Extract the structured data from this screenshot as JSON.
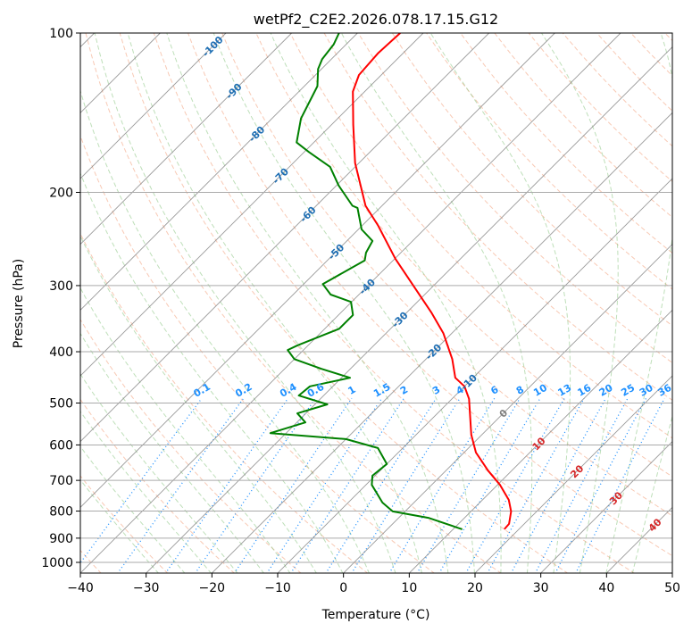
{
  "chart_data": {
    "type": "line",
    "subtype": "skew-t log-p",
    "title": "wetPf2_C2E2.2026.078.17.15.G12",
    "xlabel": "Temperature (°C)",
    "ylabel": "Pressure (hPa)",
    "xlim": [
      -40,
      50
    ],
    "ylim": [
      1050,
      100
    ],
    "xticks": [
      "−40",
      "−30",
      "−20",
      "−10",
      "0",
      "10",
      "20",
      "30",
      "40",
      "50"
    ],
    "xtick_values": [
      -40,
      -30,
      -20,
      -10,
      0,
      10,
      20,
      30,
      40,
      50
    ],
    "yticks": [
      "100",
      "200",
      "300",
      "400",
      "500",
      "600",
      "700",
      "800",
      "900",
      "1000"
    ],
    "ytick_values": [
      100,
      200,
      300,
      400,
      500,
      600,
      700,
      800,
      900,
      1000
    ],
    "grid": true,
    "series": [
      {
        "name": "temperature",
        "color": "#ff0000",
        "p": [
          100,
          109,
          120,
          129,
          149,
          176,
          212,
          231,
          267,
          300,
          337,
          369,
          413,
          448,
          465,
          491,
          574,
          620,
          671,
          714,
          762,
          801,
          846,
          866
        ],
        "T": [
          -73.5,
          -73.8,
          -73.4,
          -71.8,
          -66.7,
          -60.6,
          -52.5,
          -47.6,
          -39.9,
          -33.1,
          -26.3,
          -21.3,
          -16.0,
          -12.7,
          -10.0,
          -7.4,
          -1.6,
          1.8,
          6.4,
          10.4,
          14.0,
          16.1,
          17.7,
          17.8
        ]
      },
      {
        "name": "dewpoint",
        "color": "#008000",
        "p": [
          100,
          105,
          112,
          117,
          126,
          145,
          161,
          168,
          179,
          194,
          212,
          214,
          235,
          247,
          260,
          269,
          298,
          312,
          322,
          341,
          362,
          389,
          397,
          413,
          431,
          448,
          465,
          484,
          503,
          523,
          544,
          570,
          585,
          608,
          652,
          686,
          714,
          771,
          801,
          824,
          866
        ],
        "T": [
          -82.8,
          -81.9,
          -81.4,
          -80.5,
          -78.0,
          -75.6,
          -72.6,
          -69.2,
          -63.8,
          -59.7,
          -54.5,
          -53.4,
          -49.5,
          -46.1,
          -45.3,
          -44.3,
          -47.1,
          -44.3,
          -40.1,
          -37.8,
          -37.8,
          -41.6,
          -42.4,
          -40.0,
          -34.4,
          -28.7,
          -33.5,
          -33.8,
          -28.1,
          -31.3,
          -28.7,
          -32.4,
          -20.0,
          -13.8,
          -10.0,
          -10.4,
          -9.1,
          -4.8,
          -1.9,
          4.5,
          11.4
        ]
      }
    ],
    "isotherm_labels": [
      "-100",
      "-90",
      "-80",
      "-70",
      "-60",
      "-50",
      "-40",
      "-30",
      "-20",
      "-10",
      "0",
      "10",
      "20",
      "30",
      "40"
    ],
    "isotherm_label_values": [
      -100,
      -90,
      -80,
      -70,
      -60,
      -50,
      -40,
      -30,
      -20,
      -10,
      0,
      10,
      20,
      30,
      40
    ],
    "mixing_ratio_labels": [
      "0.1",
      "0.2",
      "0.4",
      "0.6",
      "1",
      "1.5",
      "2",
      "3",
      "4",
      "6",
      "8",
      "10",
      "13",
      "16",
      "20",
      "25",
      "30",
      "36"
    ],
    "mixing_ratio_values": [
      0.1,
      0.2,
      0.4,
      0.6,
      1,
      1.5,
      2,
      3,
      4,
      6,
      8,
      10,
      13,
      16,
      20,
      25,
      30,
      36
    ],
    "colors": {
      "isotherm": "#808080",
      "dry_adiabat": "#f4a582",
      "moist_adiabat": "#92c98a",
      "mixing_ratio": "#1e90ff",
      "negative_isotherm_label": "#1f6fb4",
      "zero_isotherm_label": "#808080",
      "positive_isotherm_label": "#d62728"
    }
  }
}
